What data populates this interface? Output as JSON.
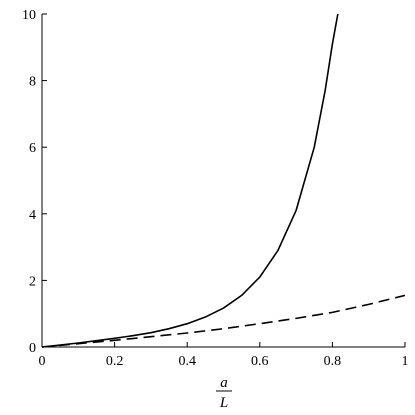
{
  "chart_data": {
    "type": "line",
    "title": "",
    "xlabel": {
      "numerator": "a",
      "denominator": "L"
    },
    "ylabel": "",
    "xlim": [
      0,
      1
    ],
    "ylim": [
      0,
      10
    ],
    "x_ticks": [
      "0",
      "0.2",
      "0.4",
      "0.6",
      "0.8",
      "1"
    ],
    "y_ticks": [
      "0",
      "2",
      "4",
      "6",
      "8",
      "10"
    ],
    "grid": false,
    "series": [
      {
        "style": "solid",
        "color": "#000000",
        "x": [
          0,
          0.05,
          0.1,
          0.15,
          0.2,
          0.25,
          0.3,
          0.35,
          0.4,
          0.45,
          0.5,
          0.55,
          0.6,
          0.65,
          0.7,
          0.75,
          0.78,
          0.8,
          0.815
        ],
        "y": [
          0,
          0.06,
          0.12,
          0.19,
          0.26,
          0.34,
          0.43,
          0.55,
          0.7,
          0.9,
          1.17,
          1.55,
          2.1,
          2.9,
          4.1,
          6.0,
          7.7,
          9.1,
          10.0
        ]
      },
      {
        "style": "dashed",
        "color": "#000000",
        "x": [
          0,
          0.1,
          0.2,
          0.3,
          0.4,
          0.5,
          0.6,
          0.7,
          0.8,
          0.9,
          1.0
        ],
        "y": [
          0,
          0.1,
          0.2,
          0.31,
          0.42,
          0.55,
          0.7,
          0.86,
          1.04,
          1.28,
          1.55
        ]
      }
    ]
  }
}
